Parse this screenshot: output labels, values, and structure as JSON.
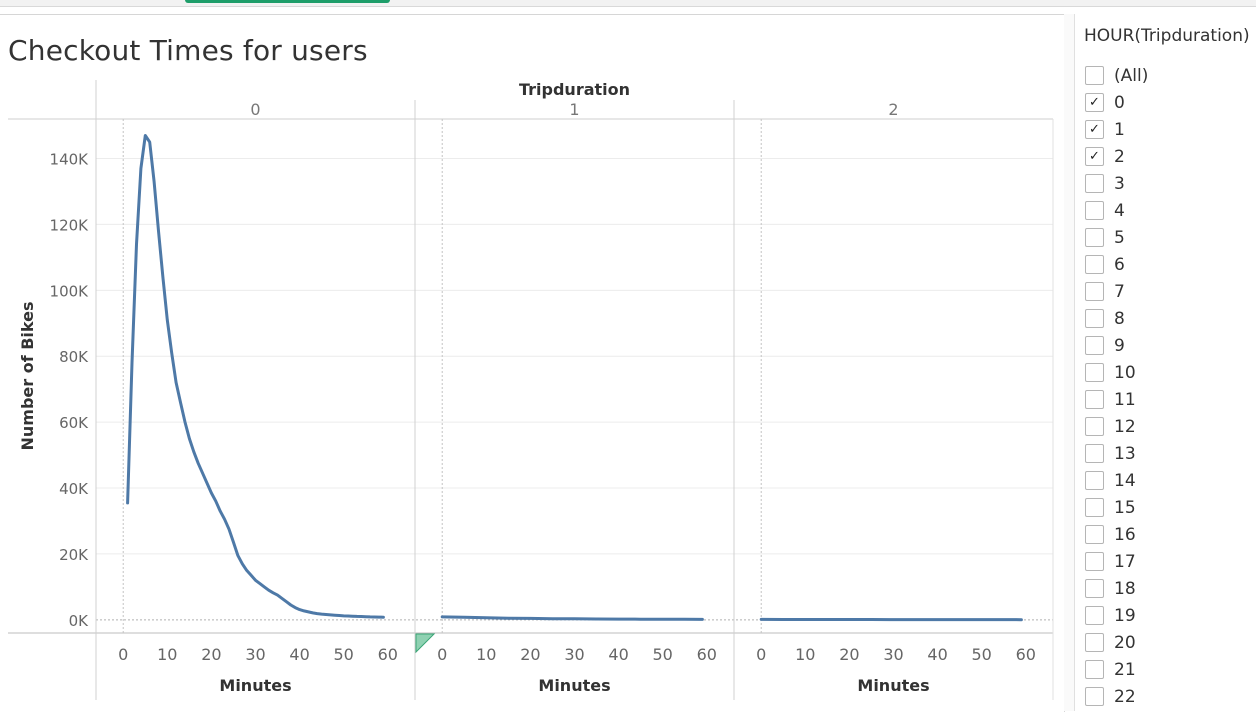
{
  "title": "Checkout Times for users",
  "filter": {
    "title": "HOUR(Tripduration)",
    "items": [
      {
        "label": "(All)",
        "checked": false
      },
      {
        "label": "0",
        "checked": true
      },
      {
        "label": "1",
        "checked": true
      },
      {
        "label": "2",
        "checked": true
      },
      {
        "label": "3",
        "checked": false
      },
      {
        "label": "4",
        "checked": false
      },
      {
        "label": "5",
        "checked": false
      },
      {
        "label": "6",
        "checked": false
      },
      {
        "label": "7",
        "checked": false
      },
      {
        "label": "8",
        "checked": false
      },
      {
        "label": "9",
        "checked": false
      },
      {
        "label": "10",
        "checked": false
      },
      {
        "label": "11",
        "checked": false
      },
      {
        "label": "12",
        "checked": false
      },
      {
        "label": "13",
        "checked": false
      },
      {
        "label": "14",
        "checked": false
      },
      {
        "label": "15",
        "checked": false
      },
      {
        "label": "16",
        "checked": false
      },
      {
        "label": "17",
        "checked": false
      },
      {
        "label": "18",
        "checked": false
      },
      {
        "label": "19",
        "checked": false
      },
      {
        "label": "20",
        "checked": false
      },
      {
        "label": "21",
        "checked": false
      },
      {
        "label": "22",
        "checked": false
      }
    ]
  },
  "colors": {
    "line": "#4e79a7",
    "grid": "#ececec",
    "axis": "#bdbdbd"
  },
  "chart_data": {
    "type": "line",
    "column_header": "Tripduration",
    "ylabel": "Number of Bikes",
    "xlabel": "Minutes",
    "ylim": [
      -4000,
      152000
    ],
    "yticks": [
      0,
      20000,
      40000,
      60000,
      80000,
      100000,
      120000,
      140000
    ],
    "ytick_labels": [
      "0K",
      "20K",
      "40K",
      "60K",
      "80K",
      "100K",
      "120K",
      "140K"
    ],
    "xlim": [
      -3,
      63
    ],
    "xticks": [
      0,
      10,
      20,
      30,
      40,
      50,
      60
    ],
    "xtick_labels": [
      "0",
      "10",
      "20",
      "30",
      "40",
      "50",
      "60"
    ],
    "panels": [
      {
        "label": "0",
        "x": [
          1,
          2,
          3,
          4,
          5,
          6,
          7,
          8,
          9,
          10,
          11,
          12,
          13,
          14,
          15,
          16,
          17,
          18,
          19,
          20,
          21,
          22,
          23,
          24,
          25,
          26,
          27,
          28,
          29,
          30,
          31,
          32,
          33,
          34,
          35,
          36,
          37,
          38,
          39,
          40,
          41,
          42,
          43,
          44,
          45,
          46,
          47,
          48,
          49,
          50,
          51,
          52,
          53,
          54,
          55,
          56,
          57,
          58,
          59
        ],
        "y": [
          35500,
          78000,
          114000,
          137000,
          147000,
          145000,
          133000,
          118000,
          104000,
          91000,
          81000,
          72000,
          66000,
          60000,
          55000,
          51000,
          47500,
          44500,
          41500,
          38500,
          36000,
          33000,
          30500,
          27500,
          23500,
          19500,
          17000,
          15000,
          13500,
          12000,
          11000,
          10000,
          9000,
          8200,
          7500,
          6500,
          5500,
          4500,
          3700,
          3100,
          2700,
          2400,
          2100,
          1900,
          1750,
          1600,
          1500,
          1400,
          1300,
          1200,
          1150,
          1100,
          1050,
          1000,
          950,
          900,
          860,
          830,
          800
        ]
      },
      {
        "label": "1",
        "x": [
          0,
          5,
          10,
          15,
          20,
          25,
          30,
          35,
          40,
          45,
          50,
          55,
          59
        ],
        "y": [
          900,
          750,
          600,
          500,
          420,
          350,
          300,
          260,
          220,
          190,
          170,
          150,
          130
        ]
      },
      {
        "label": "2",
        "x": [
          0,
          5,
          10,
          15,
          20,
          25,
          30,
          35,
          40,
          45,
          50,
          55,
          59
        ],
        "y": [
          120,
          110,
          100,
          95,
          90,
          85,
          80,
          75,
          70,
          65,
          60,
          55,
          50
        ]
      }
    ]
  }
}
